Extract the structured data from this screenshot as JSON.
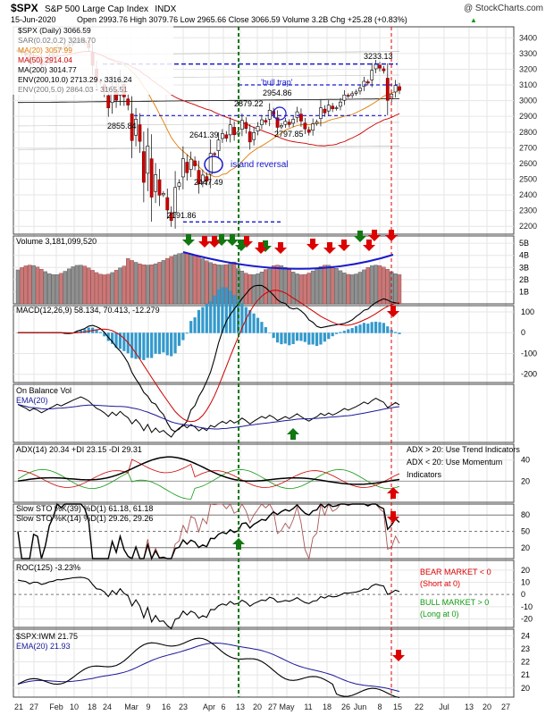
{
  "header": {
    "symbol": "$SPX",
    "name": "S&P 500 Large Cap Index",
    "exchange": "INDX",
    "watermark": "@ StockCharts.com",
    "date": "15-Jun-2020",
    "ohlc": "Open 2993.76  High 3079.76  Low 2965.66  Close 3066.59  Volume 3.2B  Chg +25.28 (+0.83%)",
    "change_arrow": "▲"
  },
  "price_legend": [
    {
      "text": "$SPX (Daily) 3066.59",
      "color": "#000000"
    },
    {
      "text": "SAR(0.02,0.2) 3218.70",
      "color": "#888888"
    },
    {
      "text": "MA(20) 3057.99",
      "color": "#e07b00"
    },
    {
      "text": "MA(50) 2914.04",
      "color": "#cc0000"
    },
    {
      "text": "MA(200) 3014.77",
      "color": "#000000"
    },
    {
      "text": "ENV(200,10.0) 2713.29 - 3316.24",
      "color": "#000000"
    },
    {
      "text": "ENV(200,5.0) 2864.03 - 3165.51",
      "color": "#888888"
    }
  ],
  "annotations": {
    "island_reversal": "island reversal",
    "bull_trap": "'bull trap'",
    "prices": [
      "3233.13",
      "2954.86",
      "2879.22",
      "2855.84",
      "2797.85",
      "2641.39",
      "2447.49",
      "2191.86"
    ],
    "bear_market": "BEAR MARKET < 0",
    "bear_sub": "(Short at 0)",
    "bull_market": "BULL MARKET > 0",
    "bull_sub": "(Long at 0)",
    "adx_note1": "ADX > 20: Use Trend Indicators",
    "adx_note2": "ADX < 20: Use Momentum",
    "adx_note3": "Indicators"
  },
  "panels": {
    "volume": {
      "legend": "Volume 3,181,099,520",
      "ticks": [
        "5B",
        "4B",
        "3B",
        "2B",
        "1B"
      ]
    },
    "macd": {
      "legend": "MACD(12,26,9) 58.134, 70.413, -12.279",
      "ticks": [
        "100",
        "0",
        "-100",
        "-200"
      ]
    },
    "obv": {
      "legend1": "On Balance Vol",
      "legend2": "EMA(20)"
    },
    "adx": {
      "legend": "ADX(14) 20.34  +DI 23.15  -DI 29.31",
      "ticks": [
        "40",
        "20"
      ]
    },
    "sto": {
      "legend1": "Slow STO %K(39) %D(1) 61.18, 61.18",
      "legend2": "Slow STO %K(14) %D(1) 29.26, 29.26",
      "ticks": [
        "80",
        "50",
        "20"
      ]
    },
    "roc": {
      "legend": "ROC(125) -3.23%",
      "ticks": [
        "20",
        "10",
        "0",
        "-10",
        "-20"
      ]
    },
    "ratio": {
      "legend1": "$SPX:IWM 21.75",
      "legend2": "EMA(20) 21.93",
      "ticks": [
        "24",
        "23",
        "22",
        "21",
        "20"
      ]
    }
  },
  "xaxis": {
    "labels": [
      "21",
      "27",
      "Feb",
      "10",
      "18",
      "24",
      "Mar",
      "9",
      "16",
      "23",
      "Apr",
      "6",
      "13",
      "20",
      "27",
      "May",
      "11",
      "18",
      "26",
      "Jun",
      "8",
      "15",
      "22",
      "Jul",
      "13",
      "20",
      "27"
    ]
  },
  "colors": {
    "up_candle": "#ffffff",
    "down_candle": "#cc0000",
    "ma20": "#e07b00",
    "ma50": "#cc0000",
    "ma200": "#000000",
    "green_arrow": "#117711",
    "red_arrow": "#dd0000",
    "blue_annot": "#1a1acc",
    "grid": "#e6e6e6"
  },
  "chart_data": {
    "type": "line",
    "title": "$SPX S&P 500 Large Cap Index INDX",
    "date_range": [
      "2020-01-21",
      "2020-06-15"
    ],
    "price_axis": {
      "ticks": [
        2200,
        2300,
        2400,
        2500,
        2600,
        2700,
        2800,
        2900,
        3000,
        3100,
        3200,
        3300,
        3400
      ],
      "ylim": [
        2150,
        3470
      ]
    },
    "close_series": [
      3321,
      3305,
      3292,
      3240,
      3276,
      3273,
      3225,
      3248,
      3283,
      3298,
      3334,
      3327,
      3345,
      3357,
      3374,
      3380,
      3386,
      3373,
      3337,
      3225,
      3128,
      3116,
      3058,
      2954,
      3090,
      3003,
      3130,
      3024,
      2972,
      2746,
      2882,
      2741,
      2480,
      2711,
      2386,
      2529,
      2398,
      2409,
      2304,
      2237,
      2447,
      2476,
      2630,
      2541,
      2627,
      2585,
      2470,
      2526,
      2488,
      2664,
      2659,
      2749,
      2790,
      2761,
      2846,
      2783,
      2799,
      2874,
      2823,
      2737,
      2797,
      2836,
      2878,
      2863,
      2939,
      2912,
      2830,
      2842,
      2868,
      2848,
      2881,
      2929,
      2870,
      2820,
      2798,
      2852,
      2864,
      2954,
      2922,
      2971,
      2948,
      2955,
      2991,
      3036,
      3029,
      3044,
      3055,
      3080,
      3123,
      3112,
      3193,
      3232,
      3207,
      3190,
      3002,
      3041,
      3097,
      3066
    ],
    "horizontal_levels": [
      3233.13,
      3100,
      2900,
      2230
    ],
    "vertical_markers": [
      {
        "date": "Apr 14",
        "color": "green"
      },
      {
        "date": "Jun 11",
        "color": "red"
      }
    ],
    "series": [
      {
        "name": "MA(20)",
        "last": 3057.99
      },
      {
        "name": "MA(50)",
        "last": 2914.04
      },
      {
        "name": "MA(200)",
        "last": 3014.77
      },
      {
        "name": "SAR(0.02,0.2)",
        "last": 3218.7
      }
    ],
    "indicators": {
      "volume": {
        "last": 3181099520
      },
      "macd": {
        "macd": 58.134,
        "signal": 70.413,
        "hist": -12.279,
        "ylim": [
          -240,
          130
        ]
      },
      "adx": {
        "adx": 20.34,
        "plus_di": 23.15,
        "minus_di": 29.31
      },
      "slow_sto_39": 61.18,
      "slow_sto_14": 29.26,
      "roc_125": -3.23,
      "spx_iwm": {
        "value": 21.75,
        "ema20": 21.93
      }
    }
  }
}
